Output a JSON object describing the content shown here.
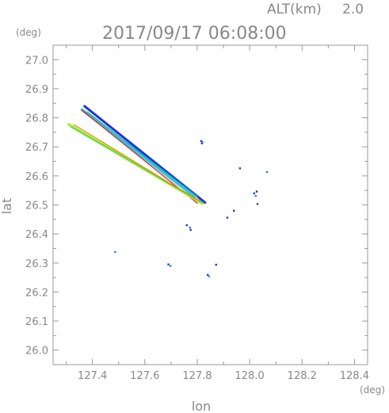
{
  "chart_data": {
    "type": "scatter",
    "alt_label": "ALT(km)",
    "alt_value": "2.0",
    "timestamp": "2017/09/17 06:08:00",
    "y_unit": "(deg)",
    "x_unit": "(deg)",
    "xlabel": "lon",
    "ylabel": "lat",
    "xlim": [
      127.25,
      128.45
    ],
    "ylim": [
      25.95,
      27.05
    ],
    "x_ticks": [
      "127.4",
      "127.6",
      "127.8",
      "128.0",
      "128.2",
      "128.4"
    ],
    "y_ticks": [
      "27.0",
      "26.9",
      "26.8",
      "26.7",
      "26.6",
      "26.5",
      "26.4",
      "26.3",
      "26.2",
      "26.1",
      "26.0"
    ],
    "colors": {
      "frame": "#999999",
      "blue_dark": "#2233dd",
      "blue_mid": "#2f7fe0",
      "cyan": "#2ec8e8",
      "teal": "#22b8a0",
      "green": "#66dd33",
      "lime": "#aaee33",
      "orange": "#ee7722",
      "red": "#dd2222"
    },
    "streaks": [
      {
        "color": "blue_dark",
        "width": 3.0,
        "x": [
          127.37,
          127.83
        ],
        "y": [
          26.84,
          26.508
        ]
      },
      {
        "color": "cyan",
        "width": 3.5,
        "x": [
          127.36,
          127.79
        ],
        "y": [
          26.828,
          26.528
        ]
      },
      {
        "color": "teal",
        "width": 1.5,
        "x": [
          127.38,
          127.8
        ],
        "y": [
          26.82,
          26.528
        ]
      },
      {
        "color": "red",
        "width": 1.3,
        "x": [
          127.36,
          127.8
        ],
        "y": [
          26.826,
          26.506
        ]
      },
      {
        "color": "lime",
        "width": 3.5,
        "x": [
          127.31,
          127.82
        ],
        "y": [
          26.777,
          26.505
        ]
      },
      {
        "color": "green",
        "width": 2.0,
        "x": [
          127.32,
          127.82
        ],
        "y": [
          26.768,
          26.508
        ]
      },
      {
        "color": "orange",
        "width": 1.1,
        "x": [
          127.33,
          127.81
        ],
        "y": [
          26.776,
          26.512
        ]
      }
    ],
    "points": [
      {
        "x": 127.815,
        "y": 26.72,
        "color": "blue_dark"
      },
      {
        "x": 127.818,
        "y": 26.712,
        "color": "blue_dark"
      },
      {
        "x": 127.82,
        "y": 26.716,
        "color": "blue_mid"
      },
      {
        "x": 127.963,
        "y": 26.626,
        "color": "blue_dark"
      },
      {
        "x": 128.066,
        "y": 26.613,
        "color": "blue_mid"
      },
      {
        "x": 128.017,
        "y": 26.54,
        "color": "blue_dark"
      },
      {
        "x": 128.027,
        "y": 26.546,
        "color": "blue_dark"
      },
      {
        "x": 128.023,
        "y": 26.531,
        "color": "blue_mid"
      },
      {
        "x": 128.03,
        "y": 26.503,
        "color": "blue_dark"
      },
      {
        "x": 127.94,
        "y": 26.48,
        "color": "blue_dark"
      },
      {
        "x": 127.915,
        "y": 26.456,
        "color": "blue_dark"
      },
      {
        "x": 127.76,
        "y": 26.43,
        "color": "blue_dark"
      },
      {
        "x": 127.772,
        "y": 26.422,
        "color": "blue_mid"
      },
      {
        "x": 127.775,
        "y": 26.414,
        "color": "blue_dark"
      },
      {
        "x": 127.487,
        "y": 26.338,
        "color": "blue_mid"
      },
      {
        "x": 127.69,
        "y": 26.295,
        "color": "blue_dark"
      },
      {
        "x": 127.698,
        "y": 26.29,
        "color": "blue_mid"
      },
      {
        "x": 127.872,
        "y": 26.294,
        "color": "blue_dark"
      },
      {
        "x": 127.84,
        "y": 26.259,
        "color": "blue_dark"
      },
      {
        "x": 127.845,
        "y": 26.254,
        "color": "blue_mid"
      }
    ]
  }
}
